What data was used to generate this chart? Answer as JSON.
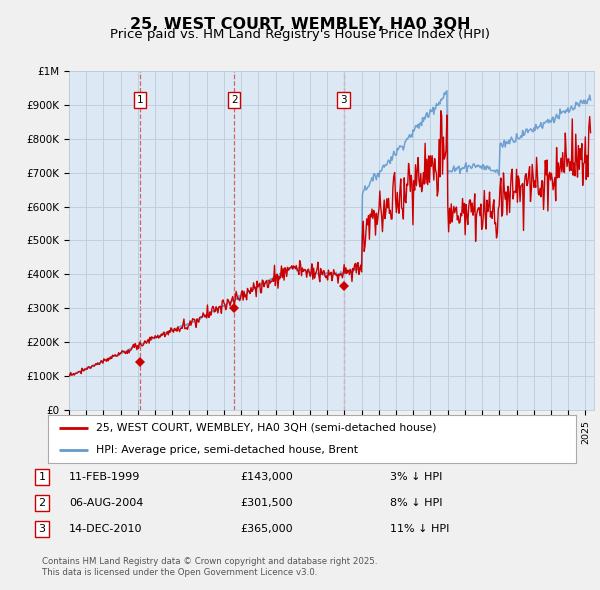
{
  "title": "25, WEST COURT, WEMBLEY, HA0 3QH",
  "subtitle": "Price paid vs. HM Land Registry's House Price Index (HPI)",
  "title_fontsize": 11.5,
  "subtitle_fontsize": 9.5,
  "ylim": [
    0,
    1000000
  ],
  "xlim_start": 1995.0,
  "xlim_end": 2025.5,
  "yticks": [
    0,
    100000,
    200000,
    300000,
    400000,
    500000,
    600000,
    700000,
    800000,
    900000,
    1000000
  ],
  "ytick_labels": [
    "£0",
    "£100K",
    "£200K",
    "£300K",
    "£400K",
    "£500K",
    "£600K",
    "£700K",
    "£800K",
    "£900K",
    "£1M"
  ],
  "line_color_red": "#cc0000",
  "line_color_blue": "#6699cc",
  "grid_color": "#bbccdd",
  "plot_bg_color": "#dce9f5",
  "fig_bg_color": "#f0f0f0",
  "transactions": [
    {
      "num": 1,
      "year": 1999.12,
      "price": 143000,
      "date": "11-FEB-1999",
      "pct": "3%"
    },
    {
      "num": 2,
      "year": 2004.6,
      "price": 301500,
      "date": "06-AUG-2004",
      "pct": "8%"
    },
    {
      "num": 3,
      "year": 2010.95,
      "price": 365000,
      "date": "14-DEC-2010",
      "pct": "11%"
    }
  ],
  "legend_label_red": "25, WEST COURT, WEMBLEY, HA0 3QH (semi-detached house)",
  "legend_label_blue": "HPI: Average price, semi-detached house, Brent",
  "footer1": "Contains HM Land Registry data © Crown copyright and database right 2025.",
  "footer2": "This data is licensed under the Open Government Licence v3.0."
}
